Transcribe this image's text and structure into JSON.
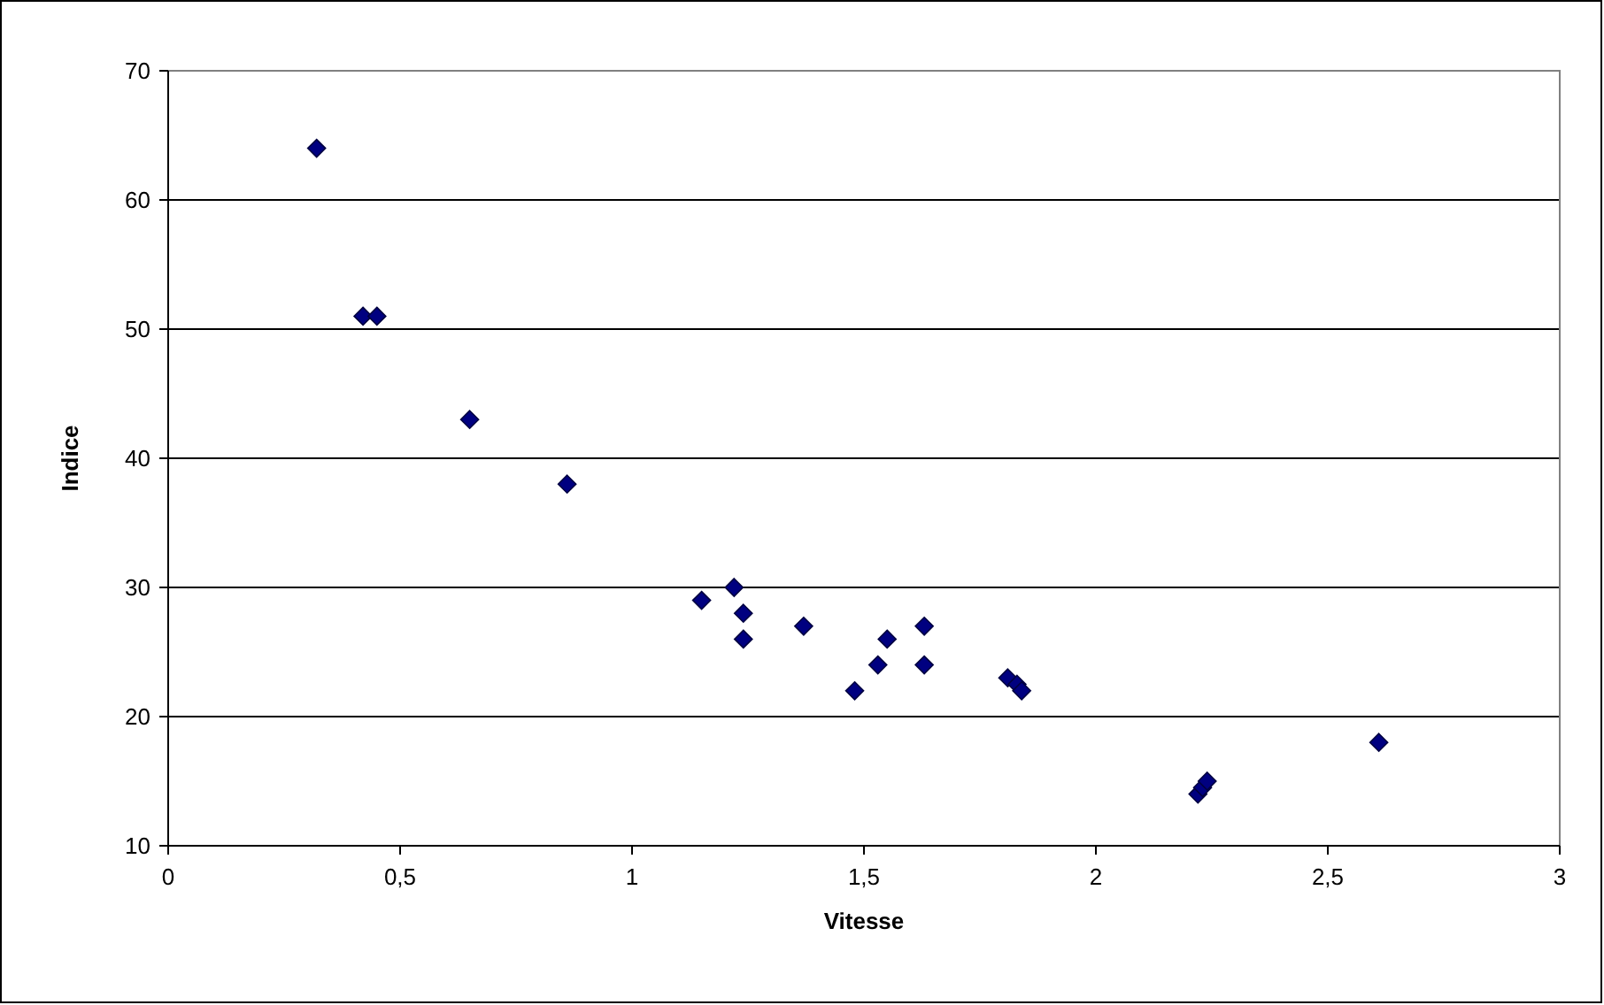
{
  "chart_data": {
    "type": "scatter",
    "xlabel": "Vitesse",
    "ylabel": "Indice",
    "xlim": [
      0,
      3
    ],
    "ylim": [
      10,
      70
    ],
    "xticks": [
      0,
      {
        "value": 0.5,
        "label": "0,5"
      },
      1,
      {
        "value": 1.5,
        "label": "1,5"
      },
      2,
      {
        "value": 2.5,
        "label": "2,5"
      },
      3
    ],
    "yticks": [
      10,
      20,
      30,
      40,
      50,
      60,
      70
    ],
    "grid": "y",
    "marker": "diamond",
    "series": [
      {
        "color": "#000080",
        "x": [
          0.32,
          0.42,
          0.45,
          0.65,
          0.86,
          1.15,
          1.22,
          1.24,
          1.24,
          1.37,
          1.48,
          1.53,
          1.55,
          1.63,
          1.63,
          1.81,
          1.83,
          1.84,
          2.22,
          2.23,
          2.24,
          2.61
        ],
        "values": [
          64,
          51,
          51,
          43,
          38,
          29,
          30,
          28,
          26,
          27,
          22,
          24,
          26,
          27,
          24,
          23,
          22.5,
          22,
          14,
          14.5,
          15,
          18
        ]
      }
    ]
  }
}
